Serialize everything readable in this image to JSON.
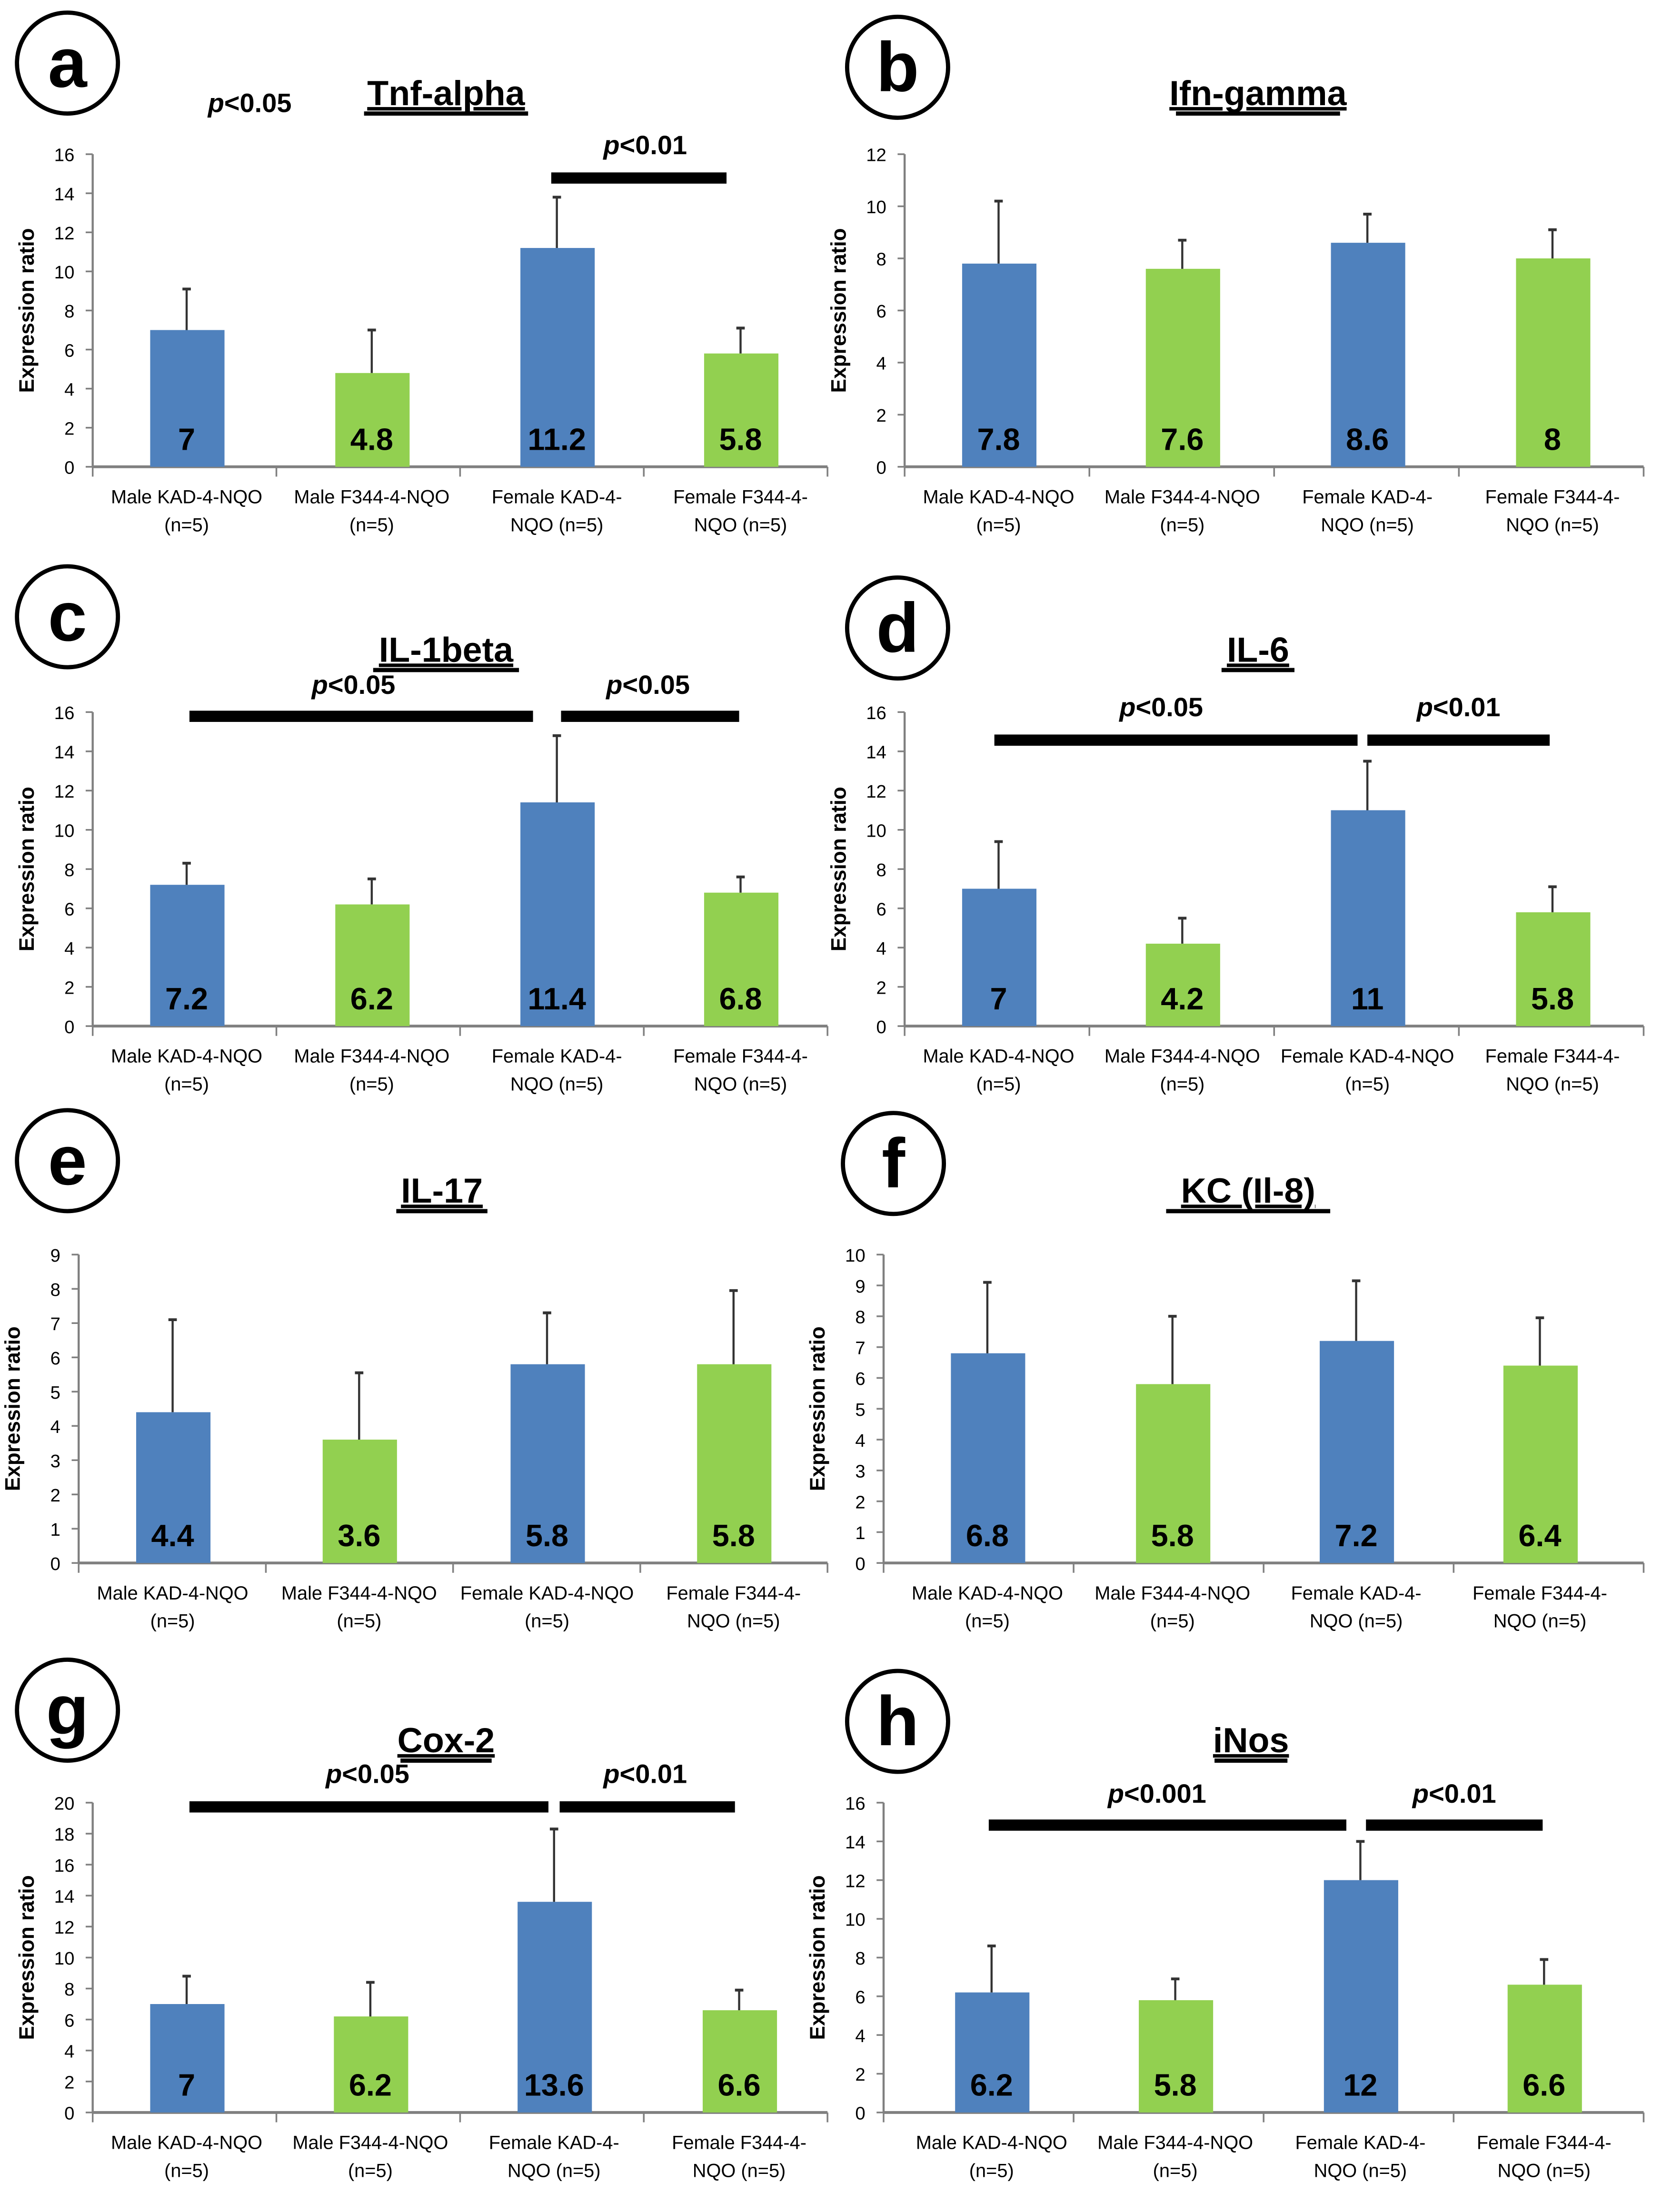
{
  "colors": {
    "kad": "#4f81bd",
    "f344": "#92d050",
    "axis": "#808080"
  },
  "chart_data": [
    {
      "panel": "a",
      "type": "bar",
      "title": "Tnf-alpha",
      "ylabel": "Expression ratio",
      "ylim": [
        0,
        16
      ],
      "yticks": [
        0,
        2,
        4,
        6,
        8,
        10,
        12,
        14,
        16
      ],
      "categories": [
        [
          "Male KAD-4-NQO",
          "(n=5)"
        ],
        [
          "Male F344-4-NQO",
          "(n=5)"
        ],
        [
          "Female KAD-4-",
          "NQO (n=5)"
        ],
        [
          "Female F344-4-",
          "NQO (n=5)"
        ]
      ],
      "values": [
        7,
        4.8,
        11.2,
        5.8
      ],
      "value_labels": [
        "7",
        "4.8",
        "11.2",
        "5.8"
      ],
      "error_top": [
        9.1,
        7.0,
        13.8,
        7.1
      ],
      "significance": [
        {
          "label_p": "p",
          "label_rest": "<0.05",
          "bar": false
        },
        {
          "label_p": "p",
          "label_rest": "<0.01",
          "bar": true,
          "from": 2,
          "to": 3
        }
      ]
    },
    {
      "panel": "b",
      "type": "bar",
      "title": "Ifn-gamma",
      "ylabel": "Expression ratio",
      "ylim": [
        0,
        12
      ],
      "yticks": [
        0,
        2,
        4,
        6,
        8,
        10,
        12
      ],
      "categories": [
        [
          "Male KAD-4-NQO",
          "(n=5)"
        ],
        [
          "Male F344-4-NQO",
          "(n=5)"
        ],
        [
          "Female KAD-4-",
          "NQO (n=5)"
        ],
        [
          "Female F344-4-",
          "NQO (n=5)"
        ]
      ],
      "values": [
        7.8,
        7.6,
        8.6,
        8
      ],
      "value_labels": [
        "7.8",
        "7.6",
        "8.6",
        "8"
      ],
      "error_top": [
        10.2,
        8.7,
        9.7,
        9.1
      ],
      "significance": []
    },
    {
      "panel": "c",
      "type": "bar",
      "title": "IL-1beta",
      "ylabel": "Expression ratio",
      "ylim": [
        0,
        16
      ],
      "yticks": [
        0,
        2,
        4,
        6,
        8,
        10,
        12,
        14,
        16
      ],
      "categories": [
        [
          "Male KAD-4-NQO",
          "(n=5)"
        ],
        [
          "Male F344-4-NQO",
          "(n=5)"
        ],
        [
          "Female KAD-4-",
          "NQO (n=5)"
        ],
        [
          "Female F344-4-",
          "NQO (n=5)"
        ]
      ],
      "values": [
        7.2,
        6.2,
        11.4,
        6.8
      ],
      "value_labels": [
        "7.2",
        "6.2",
        "11.4",
        "6.8"
      ],
      "error_top": [
        8.3,
        7.5,
        14.8,
        7.6
      ],
      "significance": [
        {
          "label_p": "p",
          "label_rest": "<0.05",
          "bar": true,
          "from": 0,
          "to": 2
        },
        {
          "label_p": "p",
          "label_rest": "<0.05",
          "bar": true,
          "from": 2,
          "to": 3
        }
      ]
    },
    {
      "panel": "d",
      "type": "bar",
      "title": "IL-6",
      "ylabel": "Expression ratio",
      "ylim": [
        0,
        16
      ],
      "yticks": [
        0,
        2,
        4,
        6,
        8,
        10,
        12,
        14,
        16
      ],
      "categories": [
        [
          "Male KAD-4-NQO",
          "(n=5)"
        ],
        [
          "Male F344-4-NQO",
          "(n=5)"
        ],
        [
          "Female KAD-4-NQO",
          "(n=5)"
        ],
        [
          "Female F344-4-",
          "NQO (n=5)"
        ]
      ],
      "values": [
        7,
        4.2,
        11,
        5.8
      ],
      "value_labels": [
        "7",
        "4.2",
        "11",
        "5.8"
      ],
      "error_top": [
        9.4,
        5.5,
        13.5,
        7.1
      ],
      "significance": [
        {
          "label_p": "p",
          "label_rest": "<0.05",
          "bar": true,
          "from": 0,
          "to": 2
        },
        {
          "label_p": "p",
          "label_rest": "<0.01",
          "bar": true,
          "from": 2,
          "to": 3
        }
      ]
    },
    {
      "panel": "e",
      "type": "bar",
      "title": "IL-17",
      "ylabel": "Expression ratio",
      "ylim": [
        0,
        9
      ],
      "yticks": [
        0,
        1,
        2,
        3,
        4,
        5,
        6,
        7,
        8,
        9
      ],
      "categories": [
        [
          "Male KAD-4-NQO",
          "(n=5)"
        ],
        [
          "Male F344-4-NQO",
          "(n=5)"
        ],
        [
          "Female KAD-4-NQO",
          "(n=5)"
        ],
        [
          "Female F344-4-",
          "NQO (n=5)"
        ]
      ],
      "values": [
        4.4,
        3.6,
        5.8,
        5.8
      ],
      "value_labels": [
        "4.4",
        "3.6",
        "5.8",
        "5.8"
      ],
      "error_top": [
        7.1,
        5.55,
        7.3,
        7.95
      ],
      "significance": []
    },
    {
      "panel": "f",
      "type": "bar",
      "title": "KC (Il-8)",
      "ylabel": "Expression ratio",
      "ylim": [
        0,
        10
      ],
      "yticks": [
        0,
        1,
        2,
        3,
        4,
        5,
        6,
        7,
        8,
        9,
        10
      ],
      "categories": [
        [
          "Male KAD-4-NQO",
          "(n=5)"
        ],
        [
          "Male F344-4-NQO",
          "(n=5)"
        ],
        [
          "Female KAD-4-",
          "NQO (n=5)"
        ],
        [
          "Female F344-4-",
          "NQO (n=5)"
        ]
      ],
      "values": [
        6.8,
        5.8,
        7.2,
        6.4
      ],
      "value_labels": [
        "6.8",
        "5.8",
        "7.2",
        "6.4"
      ],
      "error_top": [
        9.1,
        8.0,
        9.15,
        7.95
      ],
      "significance": []
    },
    {
      "panel": "g",
      "type": "bar",
      "title": "Cox-2",
      "ylabel": "Expression ratio",
      "ylim": [
        0,
        20
      ],
      "yticks": [
        0,
        2,
        4,
        6,
        8,
        10,
        12,
        14,
        16,
        18,
        20
      ],
      "categories": [
        [
          "Male KAD-4-NQO",
          "(n=5)"
        ],
        [
          "Male F344-4-NQO",
          "(n=5)"
        ],
        [
          "Female KAD-4-",
          "NQO (n=5)"
        ],
        [
          "Female F344-4-",
          "NQO (n=5)"
        ]
      ],
      "values": [
        7,
        6.2,
        13.6,
        6.6
      ],
      "value_labels": [
        "7",
        "6.2",
        "13.6",
        "6.6"
      ],
      "error_top": [
        8.8,
        8.4,
        18.3,
        7.9
      ],
      "significance": [
        {
          "label_p": "p",
          "label_rest": "<0.05",
          "bar": true,
          "from": 0,
          "to": 2
        },
        {
          "label_p": "p",
          "label_rest": "<0.01",
          "bar": true,
          "from": 2,
          "to": 3
        }
      ]
    },
    {
      "panel": "h",
      "type": "bar",
      "title": "iNos",
      "ylabel": "Expression ratio",
      "ylim": [
        0,
        16
      ],
      "yticks": [
        0,
        2,
        4,
        6,
        8,
        10,
        12,
        14,
        16
      ],
      "categories": [
        [
          "Male KAD-4-NQO",
          "(n=5)"
        ],
        [
          "Male F344-4-NQO",
          "(n=5)"
        ],
        [
          "Female KAD-4-",
          "NQO (n=5)"
        ],
        [
          "Female F344-4-",
          "NQO (n=5)"
        ]
      ],
      "values": [
        6.2,
        5.8,
        12,
        6.6
      ],
      "value_labels": [
        "6.2",
        "5.8",
        "12",
        "6.6"
      ],
      "error_top": [
        8.6,
        6.9,
        14.0,
        7.9
      ],
      "significance": [
        {
          "label_p": "p",
          "label_rest": "<0.001",
          "bar": true,
          "from": 0,
          "to": 2
        },
        {
          "label_p": "p",
          "label_rest": "<0.01",
          "bar": true,
          "from": 2,
          "to": 3
        }
      ]
    }
  ]
}
